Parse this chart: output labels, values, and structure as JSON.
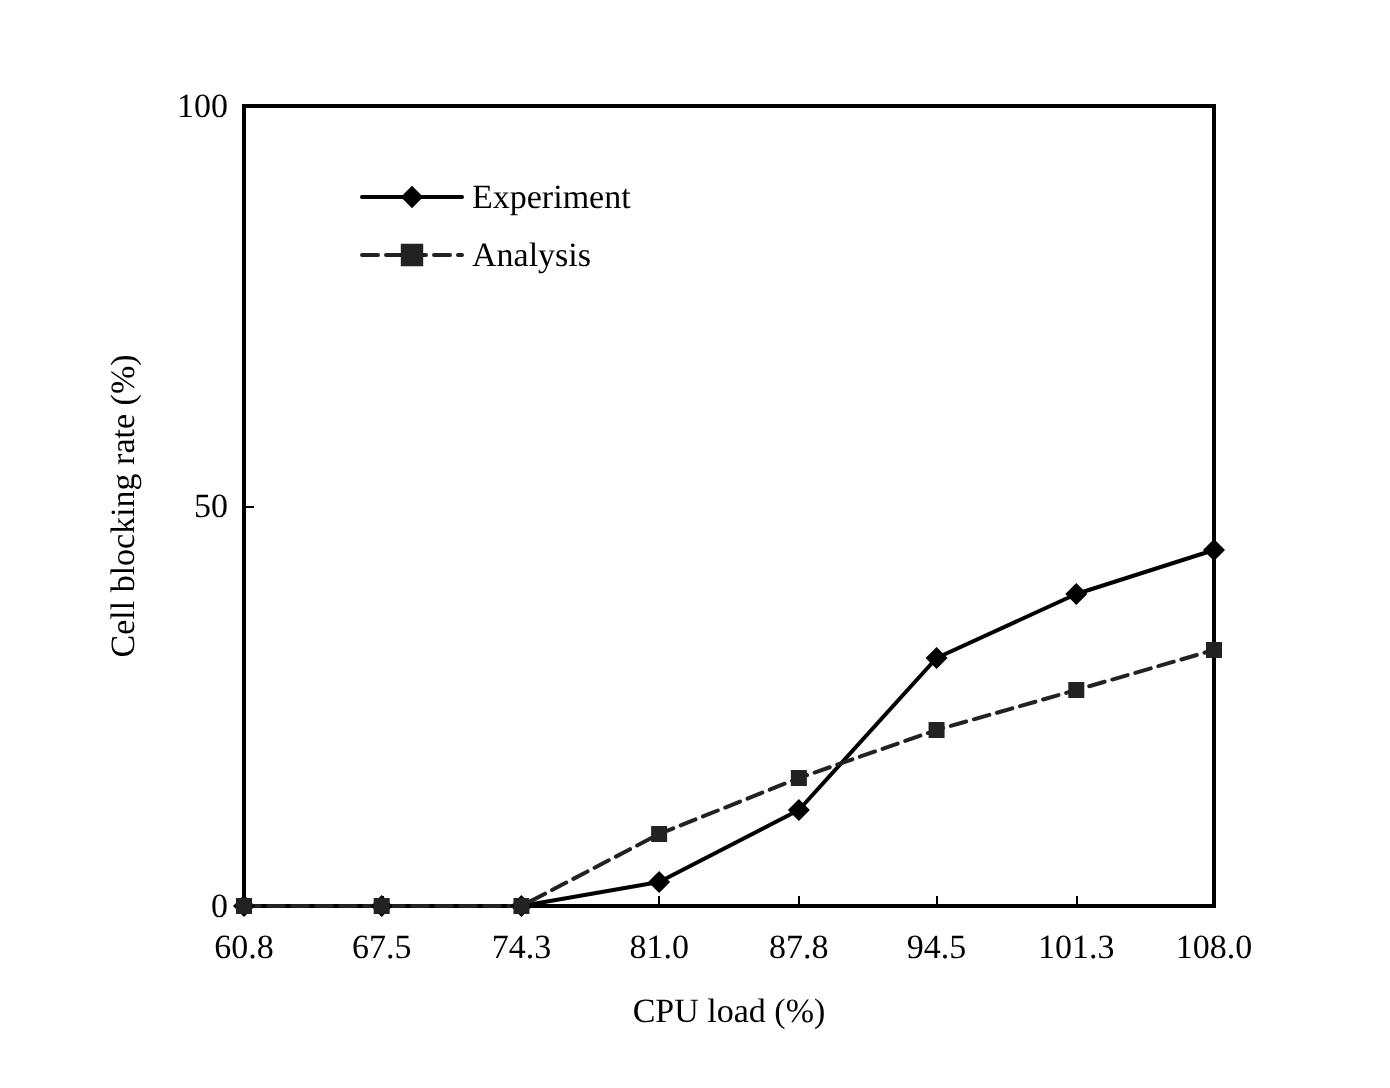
{
  "chart_data": {
    "type": "line",
    "xlabel": "CPU load (%)",
    "ylabel": "Cell blocking rate (%)",
    "x": [
      60.8,
      67.5,
      74.3,
      81.0,
      87.8,
      94.5,
      101.3,
      108.0
    ],
    "xlim": [
      60.8,
      108.0
    ],
    "xticks": [
      {
        "value": 60.8,
        "label": "60.8"
      },
      67.5,
      74.3,
      {
        "value": 81.0,
        "label": "81.0"
      },
      87.8,
      94.5,
      101.3,
      {
        "value": 108.0,
        "label": "108.0"
      }
    ],
    "ylim": [
      0,
      100
    ],
    "yticks": [
      0,
      50,
      100
    ],
    "grid": false,
    "legend": "top left",
    "series": [
      {
        "name": "Experiment",
        "color": "#000000",
        "marker": "diamond",
        "line_style": "solid",
        "values": [
          0,
          0,
          0,
          3,
          12,
          31,
          39,
          44.5
        ]
      },
      {
        "name": "Analysis",
        "color": "#222222",
        "marker": "square",
        "line_style": "dashed",
        "values": [
          0,
          0,
          0,
          9,
          16,
          22,
          27,
          32
        ]
      }
    ]
  }
}
